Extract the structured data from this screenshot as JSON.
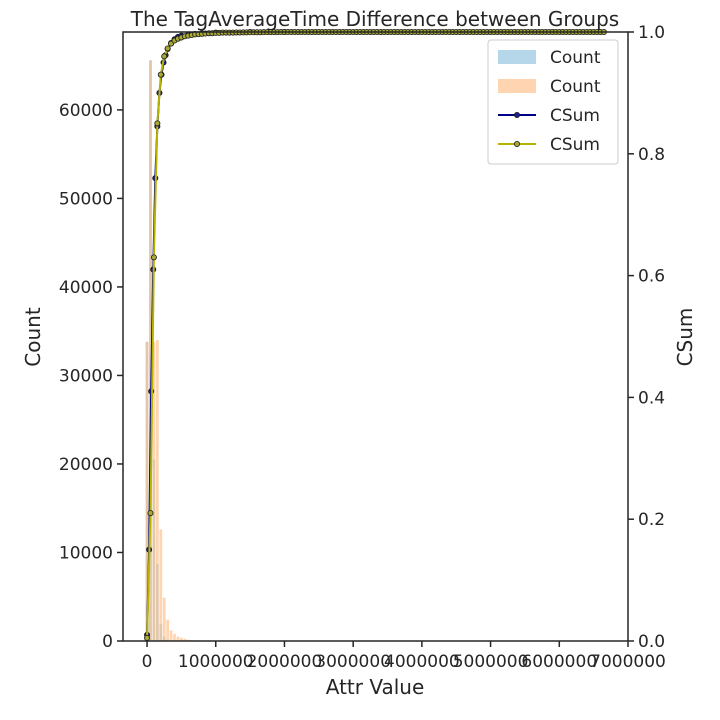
{
  "chart_data": {
    "type": "bar",
    "title": "The TagAverageTime Difference between Groups",
    "xlabel": "Attr Value",
    "ylabel": "Count",
    "y2label": "CSum",
    "xlim": [
      -350000,
      7000000
    ],
    "ylim": [
      0,
      68800
    ],
    "y2lim": [
      0,
      1.0
    ],
    "xticks": [
      0,
      1000000,
      2000000,
      3000000,
      4000000,
      5000000,
      6000000,
      7000000
    ],
    "yticks": [
      0,
      10000,
      20000,
      30000,
      40000,
      50000,
      60000
    ],
    "y2ticks": [
      0.0,
      0.2,
      0.4,
      0.6,
      0.8,
      1.0
    ],
    "grid": false,
    "legend_position": "top-right",
    "bar_width": 40000,
    "bars": [
      {
        "name": "Count",
        "color": "#9ecae1",
        "opacity": 0.75,
        "x": [
          0,
          50000,
          100000,
          150000,
          200000,
          250000,
          300000
        ],
        "values": [
          33800,
          65600,
          20500,
          8700,
          1900,
          500,
          150
        ]
      },
      {
        "name": "Count",
        "color": "#fdbe85",
        "opacity": 0.65,
        "x": [
          0,
          50000,
          100000,
          150000,
          200000,
          250000,
          300000,
          350000,
          400000,
          450000,
          500000,
          550000,
          600000,
          650000,
          700000,
          750000
        ],
        "values": [
          33800,
          65600,
          33800,
          34000,
          12600,
          4900,
          2400,
          1200,
          800,
          500,
          350,
          250,
          150,
          100,
          80,
          50
        ]
      }
    ],
    "lines": [
      {
        "name": "CSum",
        "axis": "right",
        "color": "#00008b",
        "marker_face": "#1f1f8f",
        "x": [
          0,
          30000,
          60000,
          90000,
          120000,
          150000,
          180000,
          210000,
          240000,
          270000,
          300000,
          350000,
          400000,
          450000,
          500000,
          600000,
          700000,
          800000,
          1000000,
          1500000,
          2000000
        ],
        "values": [
          0.01,
          0.15,
          0.41,
          0.61,
          0.76,
          0.845,
          0.9,
          0.93,
          0.95,
          0.962,
          0.972,
          0.982,
          0.988,
          0.992,
          0.994,
          0.996,
          0.997,
          0.998,
          0.999,
          1.0,
          1.0
        ]
      },
      {
        "name": "CSum",
        "axis": "right",
        "color": "#b5b500",
        "marker_face": "#a8a832",
        "x": [
          0,
          50000,
          100000,
          150000,
          200000,
          250000,
          300000,
          350000,
          400000,
          450000,
          500000,
          550000,
          600000,
          650000,
          700000,
          750000,
          800000,
          850000,
          900000,
          950000,
          1000000,
          1050000,
          1100000,
          1150000,
          1200000,
          1250000,
          1300000,
          1350000,
          1400000,
          1450000,
          1500000,
          1550000,
          1600000,
          1650000,
          1700000,
          1750000,
          1800000,
          1850000,
          1900000,
          1950000,
          2000000,
          2050000,
          2100000,
          2150000,
          2200000,
          2250000,
          2300000,
          2350000,
          2400000,
          2450000,
          2500000,
          2550000,
          2600000,
          2650000,
          2700000,
          2750000,
          2800000,
          2850000,
          2900000,
          2950000,
          3000000,
          3050000,
          3100000,
          3150000,
          3200000,
          3250000,
          3300000,
          3350000,
          3400000,
          3450000,
          3500000,
          3550000,
          3600000,
          3650000,
          3700000,
          3750000,
          3800000,
          3850000,
          3900000,
          3950000,
          4000000,
          4050000,
          4100000,
          4150000,
          4200000,
          4250000,
          4300000,
          4350000,
          4400000,
          4450000,
          4500000,
          4550000,
          4600000,
          4650000,
          4700000,
          4750000,
          4800000,
          4850000,
          4900000,
          4950000,
          5000000,
          5050000,
          5100000,
          5150000,
          5200000,
          5250000,
          5300000,
          5350000,
          5400000,
          5450000,
          5500000,
          5550000,
          5600000,
          5650000,
          5700000,
          5750000,
          5800000,
          5850000,
          5900000,
          5950000,
          6000000,
          6050000,
          6100000,
          6150000,
          6200000,
          6250000,
          6300000,
          6350000,
          6400000,
          6450000,
          6500000,
          6550000,
          6600000,
          6650000
        ],
        "values": [
          0.005,
          0.21,
          0.63,
          0.85,
          0.93,
          0.96,
          0.973,
          0.981,
          0.986,
          0.989,
          0.991,
          0.993,
          0.994,
          0.995,
          0.996,
          0.9965,
          0.997,
          0.9975,
          0.998,
          0.998,
          0.9985,
          0.9985,
          0.999,
          0.999,
          0.999,
          0.999,
          0.9992,
          0.9992,
          0.9994,
          0.9994,
          0.9995,
          0.9995,
          0.9996,
          0.9996,
          0.9997,
          0.9997,
          0.9998,
          0.9998,
          0.9998,
          0.9999,
          0.9999,
          0.9999,
          0.9999,
          1.0,
          1.0,
          1.0,
          1.0,
          1.0,
          1.0,
          1.0,
          1.0,
          1.0,
          1.0,
          1.0,
          1.0,
          1.0,
          1.0,
          1.0,
          1.0,
          1.0,
          1.0,
          1.0,
          1.0,
          1.0,
          1.0,
          1.0,
          1.0,
          1.0,
          1.0,
          1.0,
          1.0,
          1.0,
          1.0,
          1.0,
          1.0,
          1.0,
          1.0,
          1.0,
          1.0,
          1.0,
          1.0,
          1.0,
          1.0,
          1.0,
          1.0,
          1.0,
          1.0,
          1.0,
          1.0,
          1.0,
          1.0,
          1.0,
          1.0,
          1.0,
          1.0,
          1.0,
          1.0,
          1.0,
          1.0,
          1.0,
          1.0,
          1.0,
          1.0,
          1.0,
          1.0,
          1.0,
          1.0,
          1.0,
          1.0,
          1.0,
          1.0,
          1.0,
          1.0,
          1.0,
          1.0,
          1.0,
          1.0,
          1.0,
          1.0,
          1.0,
          1.0,
          1.0,
          1.0,
          1.0,
          1.0,
          1.0,
          1.0,
          1.0,
          1.0,
          1.0,
          1.0,
          1.0,
          1.0,
          1.0
        ]
      }
    ],
    "legend": [
      "Count",
      "Count",
      "CSum",
      "CSum"
    ]
  }
}
